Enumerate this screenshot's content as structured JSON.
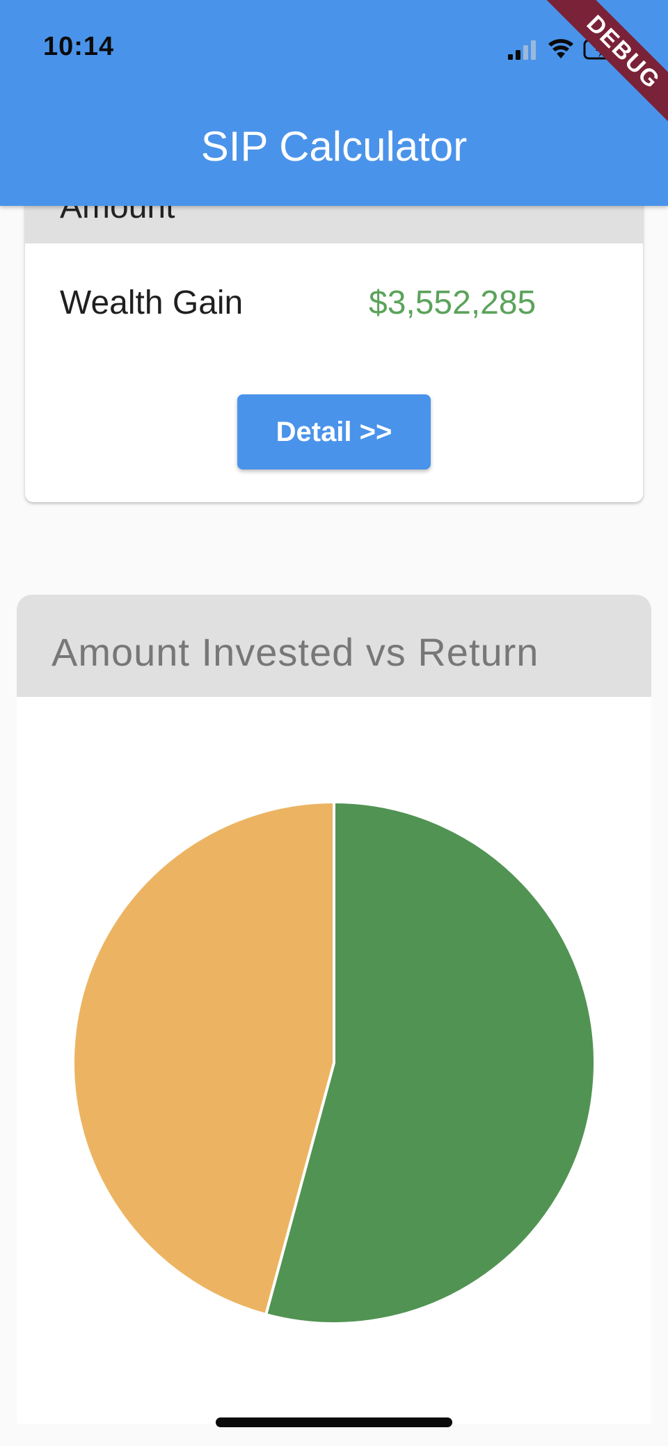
{
  "status_bar": {
    "time": "10:14"
  },
  "app_bar": {
    "title": "SIP Calculator",
    "debug_label": "DEBUG"
  },
  "summary_card": {
    "header_label": "Amount",
    "wealth_gain_label": "Wealth Gain",
    "wealth_gain_value": "$3,552,285",
    "detail_button_label": "Detail >>"
  },
  "chart_card": {
    "title": "Amount Invested vs Return"
  },
  "chart_data": {
    "type": "pie",
    "title": "Amount Invested vs Return",
    "slices": [
      {
        "label": "",
        "value": 54.2,
        "color": "#519353"
      },
      {
        "label": "",
        "value": 45.8,
        "color": "#ecb462"
      }
    ],
    "start_angle_deg": -90,
    "direction": "clockwise"
  },
  "colors": {
    "primary": "#4a93ea",
    "gain_text": "#5ba35b",
    "header_gray": "#e0e0e0"
  }
}
